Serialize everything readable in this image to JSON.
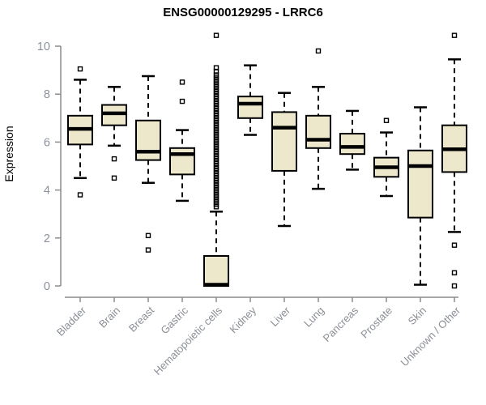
{
  "title": "ENSG00000129295 - LRRC6",
  "colors": {
    "box_fill": "#EDE8CC",
    "box_stroke": "#000000",
    "median": "#000000",
    "whisker": "#000000",
    "axis": "#8C8C8C",
    "tick_label": "#8A919C",
    "category_label": "#8A8F96",
    "title": "#000000",
    "background": "#FFFFFF"
  },
  "chart_data": {
    "type": "boxplot",
    "title": "ENSG00000129295 - LRRC6",
    "xlabel": "",
    "ylabel": "Expression",
    "ylim": [
      0,
      10
    ],
    "yticks": [
      "0",
      "2",
      "4",
      "6",
      "8",
      "10"
    ],
    "ytick_values": [
      0,
      2,
      4,
      6,
      8,
      10
    ],
    "grid": false,
    "legend": "none",
    "categories": [
      "Bladder",
      "Brain",
      "Breast",
      "Gastric",
      "Hematopoietic cells",
      "Kidney",
      "Liver",
      "Lung",
      "Pancreas",
      "Prostate",
      "Skin",
      "Unknown / Other"
    ],
    "series": [
      {
        "name": "Bladder",
        "whisker_low": 4.5,
        "q1": 5.9,
        "median": 6.55,
        "q3": 7.1,
        "whisker_high": 8.6,
        "outliers": [
          9.05,
          3.8
        ]
      },
      {
        "name": "Brain",
        "whisker_low": 5.85,
        "q1": 6.7,
        "median": 7.2,
        "q3": 7.55,
        "whisker_high": 8.3,
        "outliers": [
          5.3,
          4.5
        ]
      },
      {
        "name": "Breast",
        "whisker_low": 4.3,
        "q1": 5.25,
        "median": 5.6,
        "q3": 6.9,
        "whisker_high": 8.75,
        "outliers": [
          2.1,
          1.5
        ]
      },
      {
        "name": "Gastric",
        "whisker_low": 3.55,
        "q1": 4.65,
        "median": 5.5,
        "q3": 5.75,
        "whisker_high": 6.5,
        "outliers": [
          8.5,
          7.7
        ]
      },
      {
        "name": "Hematopoietic cells",
        "whisker_low": 0.0,
        "q1": 0.0,
        "median": 0.05,
        "q3": 1.25,
        "whisker_high": 3.1,
        "outliers": [
          10.45,
          9.1,
          8.95,
          8.8,
          8.7,
          8.6,
          8.5,
          8.4,
          8.3,
          8.2,
          8.1,
          8.0,
          7.9,
          7.8,
          7.7,
          7.6,
          7.5,
          7.4,
          7.3,
          7.2,
          7.1,
          7.0,
          6.9,
          6.8,
          6.7,
          6.6,
          6.5,
          6.4,
          6.3,
          6.2,
          6.1,
          6.0,
          5.9,
          5.8,
          5.7,
          5.6,
          5.5,
          5.4,
          5.3,
          5.2,
          5.1,
          5.0,
          4.9,
          4.8,
          4.7,
          4.6,
          4.5,
          4.4,
          4.3,
          4.2,
          4.1,
          4.0,
          3.9,
          3.8,
          3.7,
          3.6,
          3.5,
          3.4,
          3.3
        ]
      },
      {
        "name": "Kidney",
        "whisker_low": 6.3,
        "q1": 7.0,
        "median": 7.6,
        "q3": 7.9,
        "whisker_high": 9.2,
        "outliers": []
      },
      {
        "name": "Liver",
        "whisker_low": 2.5,
        "q1": 4.8,
        "median": 6.6,
        "q3": 7.25,
        "whisker_high": 8.05,
        "outliers": []
      },
      {
        "name": "Lung",
        "whisker_low": 4.05,
        "q1": 5.75,
        "median": 6.1,
        "q3": 7.1,
        "whisker_high": 8.3,
        "outliers": [
          9.8
        ]
      },
      {
        "name": "Pancreas",
        "whisker_low": 4.85,
        "q1": 5.5,
        "median": 5.8,
        "q3": 6.35,
        "whisker_high": 7.3,
        "outliers": []
      },
      {
        "name": "Prostate",
        "whisker_low": 3.75,
        "q1": 4.55,
        "median": 4.95,
        "q3": 5.35,
        "whisker_high": 6.4,
        "outliers": [
          6.9
        ]
      },
      {
        "name": "Skin",
        "whisker_low": 0.05,
        "q1": 2.85,
        "median": 5.0,
        "q3": 5.65,
        "whisker_high": 7.45,
        "outliers": []
      },
      {
        "name": "Unknown / Other",
        "whisker_low": 2.25,
        "q1": 4.75,
        "median": 5.7,
        "q3": 6.7,
        "whisker_high": 9.45,
        "outliers": [
          10.45,
          1.7,
          0.55,
          0.0
        ]
      }
    ]
  }
}
